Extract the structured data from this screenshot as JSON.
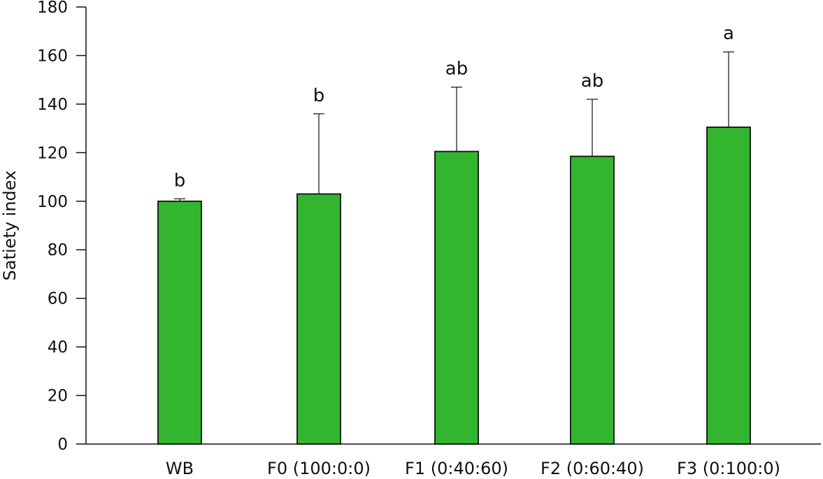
{
  "chart_data": {
    "type": "bar",
    "title": "",
    "xlabel": "",
    "ylabel": "Satiety index",
    "ylim": [
      0,
      180
    ],
    "yticks": [
      0,
      20,
      40,
      60,
      80,
      100,
      120,
      140,
      160,
      180
    ],
    "grid": false,
    "legend": "none",
    "bar_color": "#33b52f",
    "categories": [
      "WB",
      "F0 (100:0:0)",
      "F1 (0:40:60)",
      "F2 (0:60:40)",
      "F3 (0:100:0)"
    ],
    "values": [
      100,
      103,
      120.5,
      118.5,
      130.5
    ],
    "error_upper": [
      101,
      136,
      147,
      142,
      161.5
    ],
    "annotations": [
      "b",
      "b",
      "ab",
      "ab",
      "a"
    ]
  }
}
